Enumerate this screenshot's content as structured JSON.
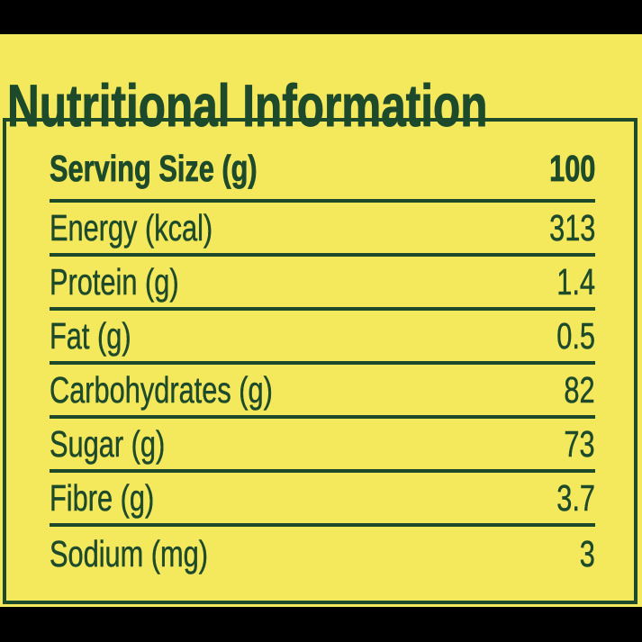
{
  "colors": {
    "background": "#000000",
    "panel": "#f4e85d",
    "text": "#1e4a2c"
  },
  "title": "Nutritional Information",
  "table": {
    "header": {
      "label": "Serving Size (g)",
      "value": "100"
    },
    "rows": [
      {
        "label": "Energy (kcal)",
        "value": "313"
      },
      {
        "label": "Protein (g)",
        "value": "1.4"
      },
      {
        "label": "Fat (g)",
        "value": "0.5"
      },
      {
        "label": "Carbohydrates (g)",
        "value": "82"
      },
      {
        "label": "Sugar (g)",
        "value": "73"
      },
      {
        "label": "Fibre (g)",
        "value": "3.7"
      },
      {
        "label": "Sodium (mg)",
        "value": "3"
      }
    ]
  }
}
